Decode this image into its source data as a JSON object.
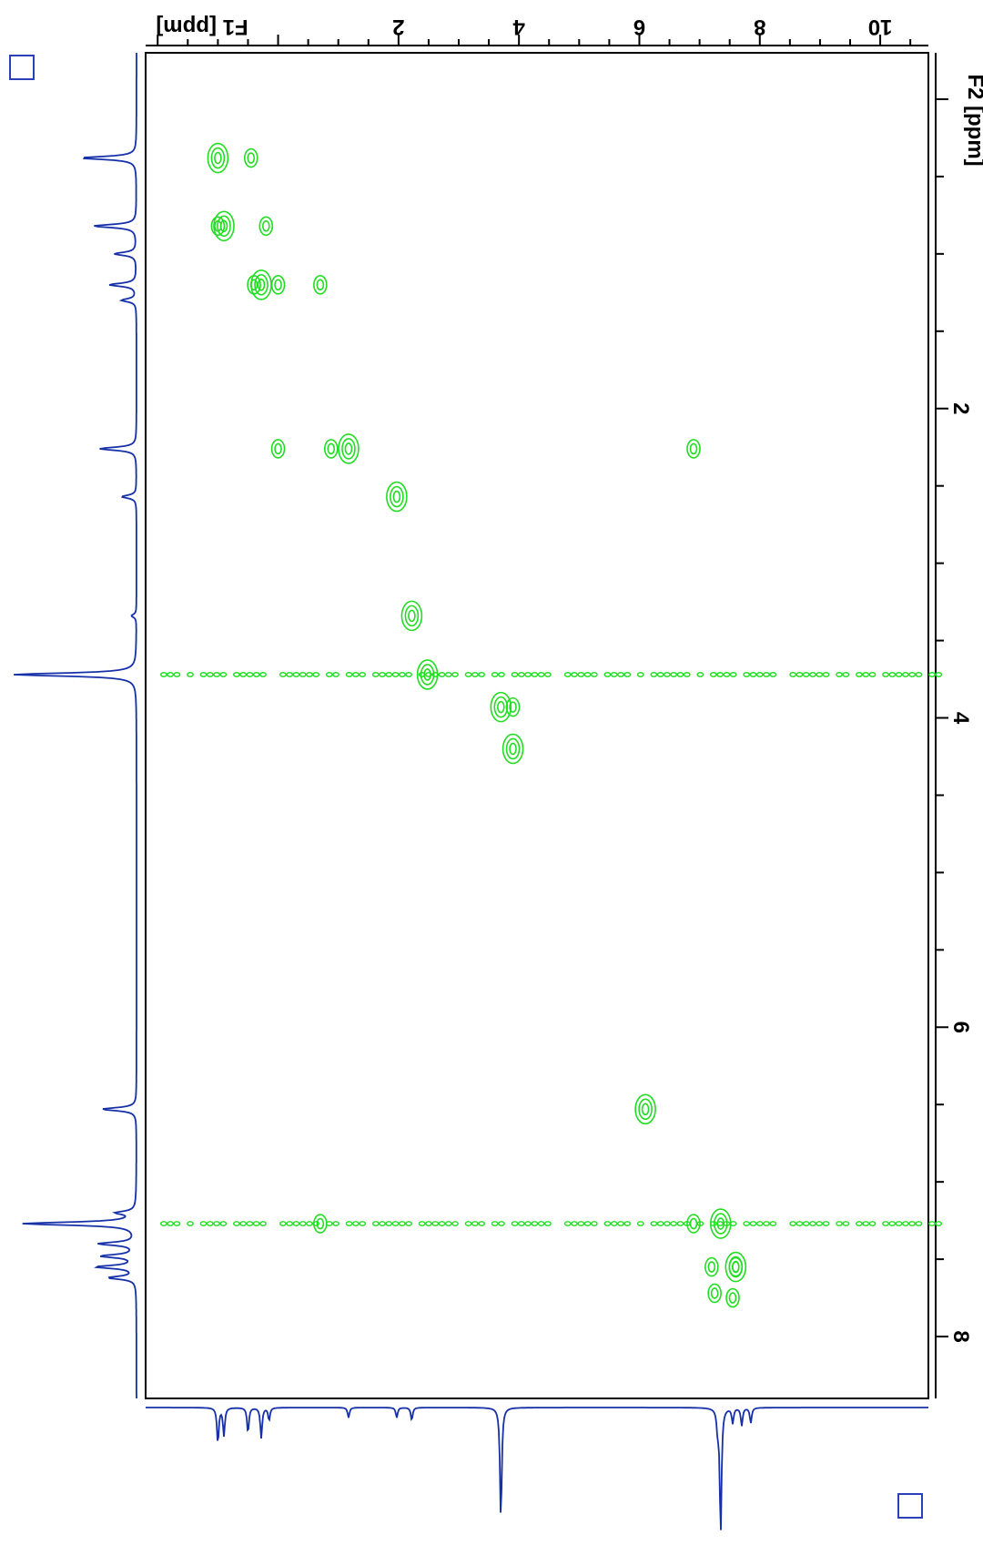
{
  "chart_data": {
    "type": "scatter",
    "subtype": "2D NMR contour plot (COSY) with projections, rotated 90 degrees",
    "f1_axis": {
      "label": "F1 [ppm]",
      "ticks": [
        "2",
        "4",
        "6",
        "8",
        "10"
      ],
      "range": [
        -2.2,
        10.8
      ]
    },
    "f2_axis": {
      "label": "F2 [ppm]",
      "ticks": [
        "2",
        "4",
        "6",
        "8"
      ],
      "range": [
        -0.3,
        8.4
      ]
    },
    "grid": false,
    "contour_color": "#22dd22",
    "projection_color": "#1530a8",
    "axis_color": "#000000",
    "diagonal_peaks": [
      {
        "f2": 0.38,
        "f1": -1.0
      },
      {
        "f2": 0.82,
        "f1": -0.9
      },
      {
        "f2": 1.2,
        "f1": -0.28
      },
      {
        "f2": 2.26,
        "f1": 1.17
      },
      {
        "f2": 2.57,
        "f1": 1.97
      },
      {
        "f2": 3.34,
        "f1": 2.22
      },
      {
        "f2": 3.72,
        "f1": 2.48
      },
      {
        "f2": 3.93,
        "f1": 3.7
      },
      {
        "f2": 4.2,
        "f1": 3.9
      },
      {
        "f2": 6.53,
        "f1": 6.1
      },
      {
        "f2": 7.27,
        "f1": 7.35
      },
      {
        "f2": 7.55,
        "f1": 7.6
      }
    ],
    "cross_peaks": [
      {
        "f2": 0.38,
        "f1": -0.45
      },
      {
        "f2": 0.82,
        "f1": -1.0
      },
      {
        "f2": 0.82,
        "f1": -0.2
      },
      {
        "f2": 1.2,
        "f1": -0.4
      },
      {
        "f2": 1.2,
        "f1": 0.0
      },
      {
        "f2": 1.2,
        "f1": 0.7
      },
      {
        "f2": 2.26,
        "f1": 0.0
      },
      {
        "f2": 2.26,
        "f1": 0.88
      },
      {
        "f2": 2.26,
        "f1": 6.9
      },
      {
        "f2": 3.93,
        "f1": 3.9
      },
      {
        "f2": 7.27,
        "f1": 0.7
      },
      {
        "f2": 7.27,
        "f1": 6.9
      },
      {
        "f2": 7.55,
        "f1": 7.2
      },
      {
        "f2": 7.55,
        "f1": 7.6
      },
      {
        "f2": 7.75,
        "f1": 7.55
      },
      {
        "f2": 7.72,
        "f1": 7.25
      }
    ],
    "t1_noise_lines": [
      {
        "f2": 3.72,
        "f1_start": -1.9,
        "f1_end": 11.0
      },
      {
        "f2": 7.27,
        "f1_start": -1.9,
        "f1_end": 11.0
      }
    ],
    "f2_projection_peaks": [
      {
        "ppm": 0.38,
        "h": 0.45
      },
      {
        "ppm": 0.82,
        "h": 0.35
      },
      {
        "ppm": 1.0,
        "h": 0.18
      },
      {
        "ppm": 1.2,
        "h": 0.22
      },
      {
        "ppm": 1.3,
        "h": 0.12
      },
      {
        "ppm": 2.26,
        "h": 0.3
      },
      {
        "ppm": 2.57,
        "h": 0.12
      },
      {
        "ppm": 3.34,
        "h": 0.04
      },
      {
        "ppm": 3.72,
        "h": 1.0
      },
      {
        "ppm": 6.53,
        "h": 0.28
      },
      {
        "ppm": 7.2,
        "h": 0.15
      },
      {
        "ppm": 7.27,
        "h": 0.92
      },
      {
        "ppm": 7.4,
        "h": 0.3
      },
      {
        "ppm": 7.48,
        "h": 0.28
      },
      {
        "ppm": 7.55,
        "h": 0.32
      },
      {
        "ppm": 7.62,
        "h": 0.22
      }
    ],
    "f1_projection_peaks": [
      {
        "ppm": -1.0,
        "h": 0.28
      },
      {
        "ppm": -0.9,
        "h": 0.22
      },
      {
        "ppm": -0.5,
        "h": 0.2
      },
      {
        "ppm": -0.28,
        "h": 0.24
      },
      {
        "ppm": -0.15,
        "h": 0.1
      },
      {
        "ppm": 1.17,
        "h": 0.08
      },
      {
        "ppm": 1.97,
        "h": 0.08
      },
      {
        "ppm": 2.22,
        "h": 0.1
      },
      {
        "ppm": 3.7,
        "h": 0.88
      },
      {
        "ppm": 7.3,
        "h": 0.15
      },
      {
        "ppm": 7.35,
        "h": 0.98
      },
      {
        "ppm": 7.55,
        "h": 0.12
      },
      {
        "ppm": 7.7,
        "h": 0.14
      },
      {
        "ppm": 7.85,
        "h": 0.12
      }
    ]
  }
}
